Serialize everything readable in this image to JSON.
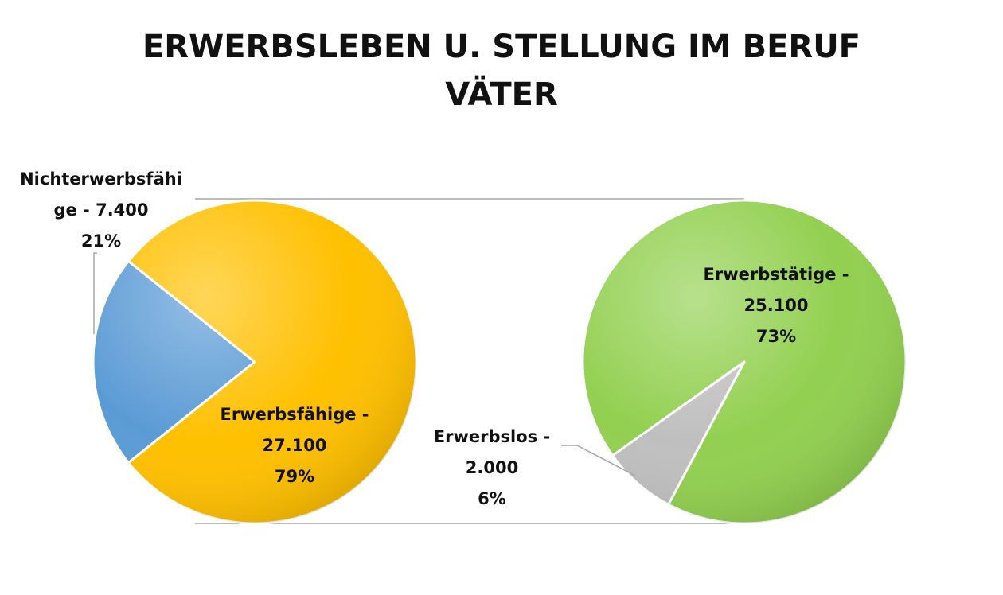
{
  "chart_data": {
    "type": "pie",
    "title_lines": [
      "ERWERBSLEBEN U. STELLUNG IM BERUF",
      "VÄTER"
    ],
    "main_pie": {
      "slices": [
        {
          "label_lines": [
            "Nichterwerbsfähi",
            "ge - 7.400",
            "21%"
          ],
          "value": 7400,
          "percent": 21,
          "color": "#5B9BD5"
        },
        {
          "label_lines": [
            "Erwerbsfähige -",
            "27.100",
            "79%"
          ],
          "value": 27100,
          "percent": 79,
          "color": "#FFC000"
        }
      ]
    },
    "sub_pie": {
      "slices": [
        {
          "label_lines": [
            "Erwerbstätige -",
            "25.100",
            "73%"
          ],
          "value": 25100,
          "percent": 73,
          "color": "#92D050"
        },
        {
          "label_lines": [
            "Erwerbslos -",
            "2.000",
            "6%"
          ],
          "value": 2000,
          "percent": 6,
          "color": "#BFBFBF"
        }
      ]
    }
  }
}
